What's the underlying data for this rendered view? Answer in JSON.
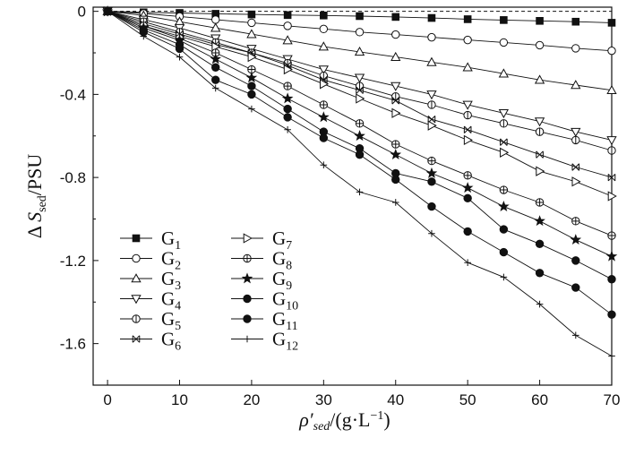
{
  "chart_data": {
    "type": "line",
    "xlabel": "ρ′sed/(g·L−1)",
    "ylabel": "ΔSsed/PSU",
    "xlim": [
      -2,
      70
    ],
    "ylim": [
      -1.8,
      0.02
    ],
    "xticks": [
      0,
      10,
      20,
      30,
      40,
      50,
      60,
      70
    ],
    "yticks": [
      0,
      -0.4,
      -0.8,
      -1.2,
      -1.6
    ],
    "ytick_labels": [
      "0",
      "-0.4",
      "-0.8",
      "-1.2",
      "-1.6"
    ],
    "reference_line": {
      "y": 0,
      "style": "dashed"
    },
    "legend_placement": "lower-left",
    "x": [
      0,
      5,
      10,
      15,
      20,
      25,
      30,
      35,
      40,
      45,
      50,
      55,
      60,
      65,
      70
    ],
    "series": [
      {
        "name": "G1",
        "marker": "square-filled",
        "values": [
          0,
          -0.005,
          -0.008,
          -0.012,
          -0.015,
          -0.018,
          -0.02,
          -0.023,
          -0.027,
          -0.032,
          -0.038,
          -0.042,
          -0.046,
          -0.05,
          -0.055
        ]
      },
      {
        "name": "G2",
        "marker": "circle-open",
        "values": [
          0,
          -0.01,
          -0.025,
          -0.04,
          -0.055,
          -0.07,
          -0.085,
          -0.1,
          -0.112,
          -0.125,
          -0.138,
          -0.15,
          -0.163,
          -0.178,
          -0.19
        ]
      },
      {
        "name": "G3",
        "marker": "triangle-up-open",
        "values": [
          0,
          -0.02,
          -0.05,
          -0.08,
          -0.11,
          -0.14,
          -0.17,
          -0.195,
          -0.22,
          -0.245,
          -0.27,
          -0.3,
          -0.33,
          -0.355,
          -0.38
        ]
      },
      {
        "name": "G4",
        "marker": "triangle-down-open",
        "values": [
          0,
          -0.04,
          -0.08,
          -0.13,
          -0.18,
          -0.23,
          -0.28,
          -0.32,
          -0.36,
          -0.4,
          -0.45,
          -0.49,
          -0.53,
          -0.58,
          -0.62
        ]
      },
      {
        "name": "G5",
        "marker": "circle-vline",
        "values": [
          0,
          -0.05,
          -0.1,
          -0.15,
          -0.2,
          -0.25,
          -0.31,
          -0.36,
          -0.41,
          -0.45,
          -0.5,
          -0.54,
          -0.58,
          -0.62,
          -0.67
        ]
      },
      {
        "name": "G6",
        "marker": "x-box",
        "values": [
          0,
          -0.06,
          -0.11,
          -0.16,
          -0.2,
          -0.26,
          -0.33,
          -0.38,
          -0.43,
          -0.52,
          -0.57,
          -0.63,
          -0.69,
          -0.75,
          -0.8
        ]
      },
      {
        "name": "G7",
        "marker": "triangle-right-open",
        "values": [
          0,
          -0.07,
          -0.12,
          -0.17,
          -0.22,
          -0.28,
          -0.35,
          -0.42,
          -0.49,
          -0.55,
          -0.62,
          -0.68,
          -0.77,
          -0.82,
          -0.89
        ]
      },
      {
        "name": "G8",
        "marker": "circle-cross",
        "values": [
          0,
          -0.07,
          -0.13,
          -0.2,
          -0.28,
          -0.36,
          -0.45,
          -0.54,
          -0.64,
          -0.72,
          -0.79,
          -0.86,
          -0.92,
          -1.01,
          -1.08
        ]
      },
      {
        "name": "G9",
        "marker": "star-filled",
        "values": [
          0,
          -0.08,
          -0.14,
          -0.23,
          -0.32,
          -0.42,
          -0.51,
          -0.6,
          -0.69,
          -0.78,
          -0.85,
          -0.94,
          -1.01,
          -1.1,
          -1.18
        ]
      },
      {
        "name": "G10",
        "marker": "circle-half",
        "values": [
          0,
          -0.09,
          -0.16,
          -0.27,
          -0.36,
          -0.47,
          -0.58,
          -0.66,
          -0.78,
          -0.82,
          -0.9,
          -1.05,
          -1.12,
          -1.2,
          -1.29
        ]
      },
      {
        "name": "G11",
        "marker": "circle-filled",
        "values": [
          0,
          -0.1,
          -0.18,
          -0.33,
          -0.4,
          -0.51,
          -0.61,
          -0.69,
          -0.81,
          -0.94,
          -1.06,
          -1.16,
          -1.26,
          -1.33,
          -1.46
        ]
      },
      {
        "name": "G12",
        "marker": "plus",
        "values": [
          0,
          -0.12,
          -0.22,
          -0.37,
          -0.47,
          -0.57,
          -0.74,
          -0.87,
          -0.92,
          -1.07,
          -1.21,
          -1.28,
          -1.41,
          -1.56,
          -1.66
        ]
      }
    ]
  }
}
